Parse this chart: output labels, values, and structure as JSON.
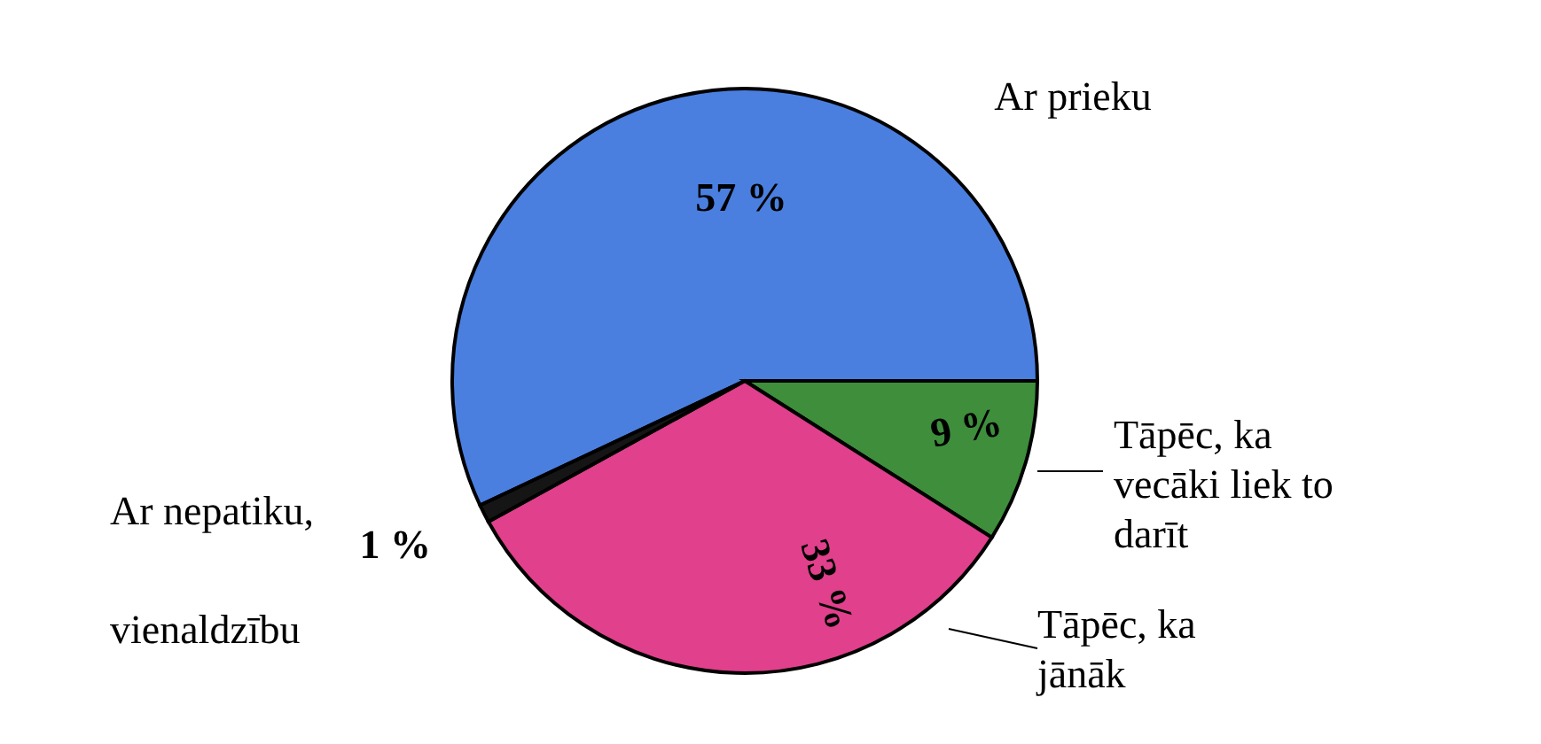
{
  "chart_data": {
    "type": "pie",
    "categories": [
      "Ar prieku",
      "Tāpēc, ka vecāki liek to darīt",
      "Tāpēc, ka jānāk",
      "Ar nepatiku, vienaldzību"
    ],
    "values": [
      57,
      9,
      33,
      1
    ],
    "colors": [
      "#4a7fe0",
      "#3e8e3c",
      "#e0408c",
      "#151515"
    ],
    "value_labels": [
      "57 %",
      "9 %",
      "33 %",
      "1 %"
    ]
  }
}
